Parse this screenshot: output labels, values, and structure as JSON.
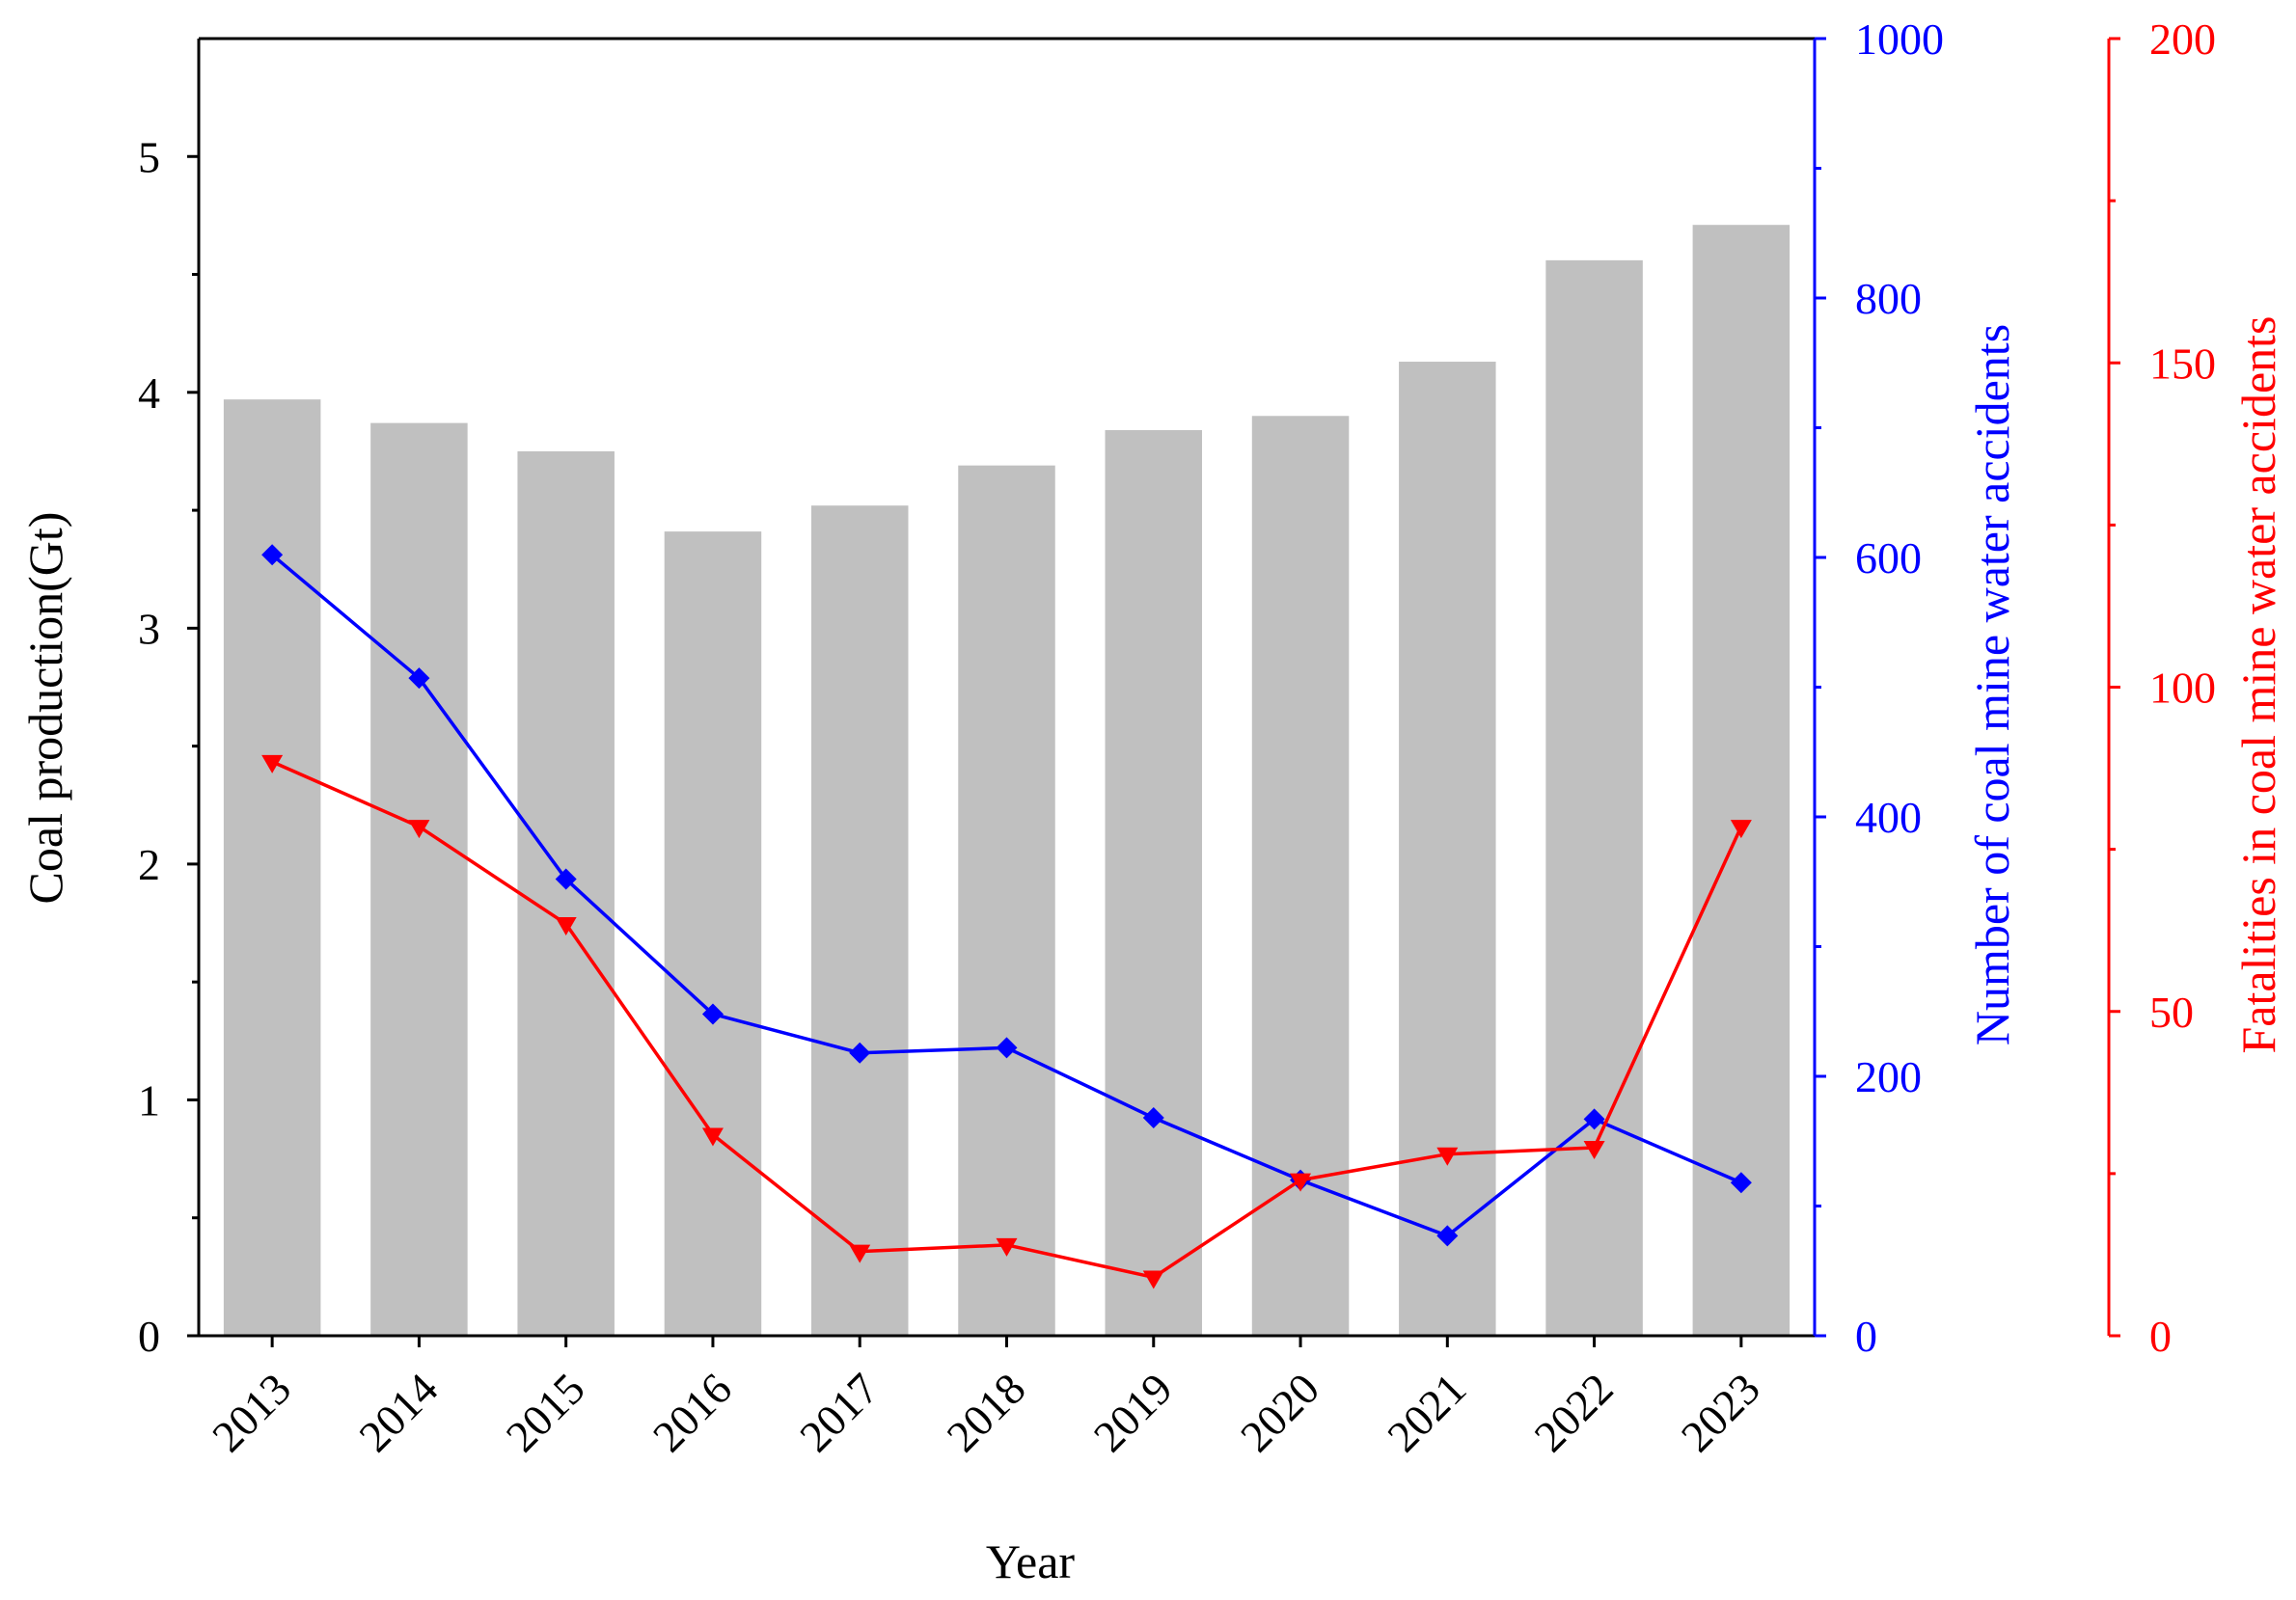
{
  "chart_data": {
    "type": "bar",
    "xlabel": "Year",
    "categories": [
      "2013",
      "2014",
      "2015",
      "2016",
      "2017",
      "2018",
      "2019",
      "2020",
      "2021",
      "2022",
      "2023"
    ],
    "bars": {
      "axis": "left",
      "color": "#c0c0c0",
      "values": [
        3.97,
        3.87,
        3.75,
        3.41,
        3.52,
        3.69,
        3.84,
        3.9,
        4.13,
        4.56,
        4.71
      ]
    },
    "series": [
      {
        "type": "line",
        "axis": "right1",
        "marker": "diamond",
        "color": "#0000ff",
        "values": [
          602,
          507,
          352,
          248,
          218,
          222,
          168,
          120,
          77,
          167,
          118
        ]
      },
      {
        "type": "line",
        "axis": "right2",
        "marker": "triangle-down",
        "color": "#ff0000",
        "values": [
          88.5,
          78.5,
          63.5,
          31,
          13,
          14,
          9,
          24,
          28,
          29,
          78.5
        ]
      }
    ],
    "axes": {
      "left": {
        "label": "Coal production(Gt)",
        "ylim": [
          0,
          5.5
        ],
        "ticks": [
          "0",
          "1",
          "2",
          "3",
          "4",
          "5"
        ],
        "color": "#000000"
      },
      "right1": {
        "label": "Number of coal mine water accidents",
        "ylim": [
          0,
          1000
        ],
        "ticks": [
          "0",
          "200",
          "400",
          "600",
          "800",
          "1000"
        ],
        "color": "#0000ff"
      },
      "right2": {
        "label": "Fatalities in coal mine water accidents",
        "ylim": [
          0,
          200
        ],
        "ticks": [
          "0",
          "50",
          "100",
          "150",
          "200"
        ],
        "color": "#ff0000"
      }
    },
    "grid": false
  }
}
